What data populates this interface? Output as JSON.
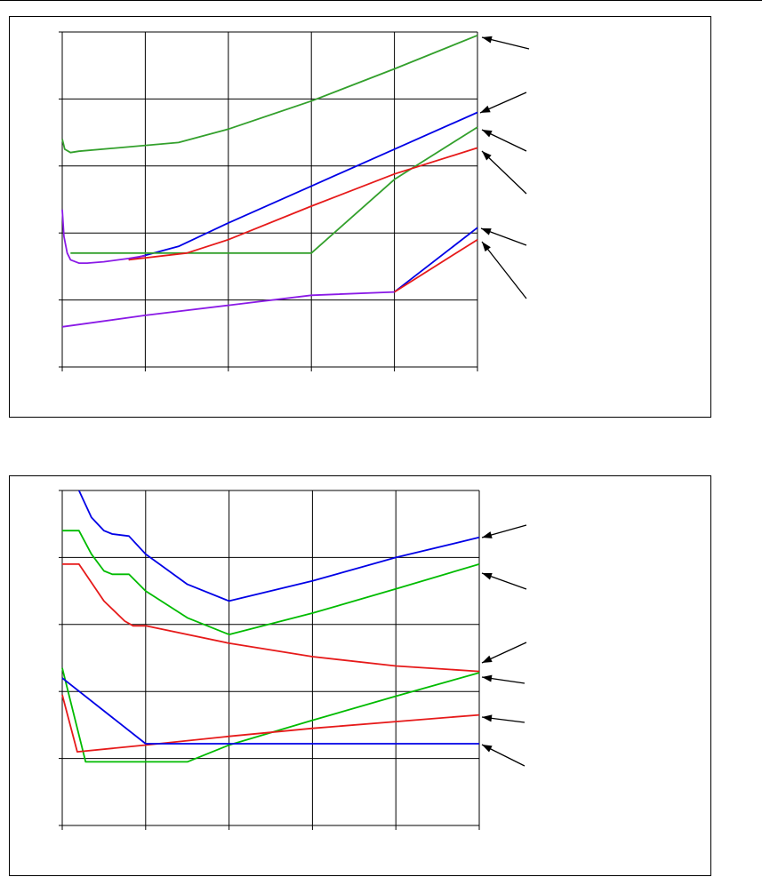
{
  "chart_data": [
    {
      "type": "line",
      "title": "",
      "xlabel": "",
      "ylabel": "",
      "xlim": [
        0,
        5
      ],
      "ylim": [
        0,
        5
      ],
      "grid": true,
      "series": [
        {
          "color": "#33a02c",
          "x": [
            0,
            0.03,
            0.1,
            0.2,
            1.4,
            2,
            3,
            4,
            5
          ],
          "y": [
            3.4,
            3.25,
            3.2,
            3.22,
            3.35,
            3.55,
            3.97,
            4.45,
            4.95
          ]
        },
        {
          "color": "#0000e6",
          "x": [
            0.8,
            1.4,
            2,
            3,
            4,
            5
          ],
          "y": [
            1.6,
            1.8,
            2.15,
            2.7,
            3.25,
            3.8
          ]
        },
        {
          "color": "#33a02c",
          "x": [
            0.1,
            1,
            2,
            3,
            4,
            5
          ],
          "y": [
            1.7,
            1.7,
            1.7,
            1.7,
            2.8,
            3.58
          ]
        },
        {
          "color": "#e61a1a",
          "x": [
            0.8,
            1.5,
            2,
            3,
            4,
            5
          ],
          "y": [
            1.6,
            1.7,
            1.9,
            2.4,
            2.88,
            3.27
          ]
        },
        {
          "color": "#8a1ae6",
          "x": [
            0,
            0.02,
            0.06,
            0.1,
            0.2,
            0.3,
            0.5,
            0.8,
            1
          ],
          "y": [
            2.35,
            1.95,
            1.7,
            1.6,
            1.55,
            1.55,
            1.57,
            1.62,
            1.66
          ]
        },
        {
          "color": "#8a1ae6",
          "x": [
            0,
            1,
            2,
            3,
            4
          ],
          "y": [
            0.6,
            0.77,
            0.92,
            1.07,
            1.12
          ]
        },
        {
          "color": "#0000e6",
          "x": [
            4,
            5
          ],
          "y": [
            1.12,
            2.08
          ]
        },
        {
          "color": "#e61a1a",
          "x": [
            4,
            5
          ],
          "y": [
            1.12,
            1.9
          ]
        }
      ]
    },
    {
      "type": "line",
      "title": "",
      "xlabel": "",
      "ylabel": "",
      "xlim": [
        0,
        5
      ],
      "ylim": [
        0,
        5
      ],
      "grid": true,
      "series": [
        {
          "color": "#0000e6",
          "x": [
            0.2,
            0.35,
            0.5,
            0.6,
            0.8,
            1,
            1.5,
            2,
            3,
            4,
            5
          ],
          "y": [
            5.0,
            4.6,
            4.4,
            4.35,
            4.32,
            4.05,
            3.6,
            3.35,
            3.65,
            4.0,
            4.3
          ]
        },
        {
          "color": "#00bb00",
          "x": [
            0,
            0.2,
            0.35,
            0.5,
            0.6,
            0.8,
            1,
            1.5,
            2,
            3,
            4,
            5
          ],
          "y": [
            4.4,
            4.4,
            4.05,
            3.8,
            3.75,
            3.75,
            3.5,
            3.1,
            2.85,
            3.17,
            3.53,
            3.9
          ]
        },
        {
          "color": "#e61a1a",
          "x": [
            0,
            0.2,
            0.5,
            0.75,
            0.85,
            1,
            2,
            3,
            4,
            5
          ],
          "y": [
            3.9,
            3.9,
            3.35,
            3.05,
            2.98,
            2.98,
            2.72,
            2.52,
            2.38,
            2.3
          ]
        },
        {
          "color": "#00bb00",
          "x": [
            0,
            0.28,
            1,
            1.5,
            2,
            3,
            4,
            5
          ],
          "y": [
            2.35,
            0.95,
            0.95,
            0.95,
            1.2,
            1.57,
            1.93,
            2.28
          ]
        },
        {
          "color": "#e61a1a",
          "x": [
            0,
            0.18,
            1,
            2,
            3,
            4,
            5
          ],
          "y": [
            1.95,
            1.1,
            1.2,
            1.33,
            1.45,
            1.55,
            1.65
          ]
        },
        {
          "color": "#0000e6",
          "x": [
            0,
            1,
            2,
            3,
            4,
            5
          ],
          "y": [
            2.2,
            1.22,
            1.22,
            1.22,
            1.22,
            1.22
          ]
        }
      ]
    }
  ]
}
